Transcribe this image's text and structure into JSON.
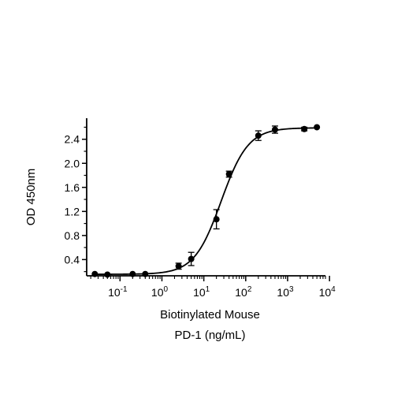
{
  "chart_data": {
    "type": "scatter",
    "xlabel_lines": [
      "Biotinylated Mouse",
      "PD-1 (ng/mL)"
    ],
    "ylabel": "OD 450nm",
    "x_scale": "log10",
    "xlim": [
      0.016,
      8000
    ],
    "ylim": [
      0.13,
      2.75
    ],
    "x_major_ticks": [
      {
        "value": 0.1,
        "label": "10",
        "exp": "-1"
      },
      {
        "value": 1,
        "label": "10",
        "exp": "0"
      },
      {
        "value": 10,
        "label": "10",
        "exp": "1"
      },
      {
        "value": 100,
        "label": "10",
        "exp": "2"
      },
      {
        "value": 1000,
        "label": "10",
        "exp": "3"
      },
      {
        "value": 10000,
        "label": "10",
        "exp": "4"
      }
    ],
    "y_ticks": [
      {
        "value": 0.4,
        "label": "0.4"
      },
      {
        "value": 0.8,
        "label": "0.8"
      },
      {
        "value": 1.2,
        "label": "1.2"
      },
      {
        "value": 1.6,
        "label": "1.6"
      },
      {
        "value": 2.0,
        "label": "2.0"
      },
      {
        "value": 2.4,
        "label": "2.4"
      }
    ],
    "points": [
      {
        "x": 0.025,
        "y": 0.16,
        "err": 0
      },
      {
        "x": 0.05,
        "y": 0.15,
        "err": 0
      },
      {
        "x": 0.2,
        "y": 0.16,
        "err": 0
      },
      {
        "x": 0.4,
        "y": 0.16,
        "err": 0
      },
      {
        "x": 2.5,
        "y": 0.29,
        "err": 0.05
      },
      {
        "x": 5,
        "y": 0.41,
        "err": 0.11
      },
      {
        "x": 20,
        "y": 1.07,
        "err": 0.16
      },
      {
        "x": 40,
        "y": 1.82,
        "err": 0.05
      },
      {
        "x": 200,
        "y": 2.46,
        "err": 0.08
      },
      {
        "x": 500,
        "y": 2.56,
        "err": 0.06
      },
      {
        "x": 2500,
        "y": 2.57,
        "err": 0.03
      },
      {
        "x": 5000,
        "y": 2.6,
        "err": 0
      }
    ],
    "fit": {
      "model": "4PL",
      "bottom": 0.155,
      "top": 2.59,
      "ec50": 26,
      "hill": 1.35
    },
    "grid": false,
    "legend": "none"
  }
}
